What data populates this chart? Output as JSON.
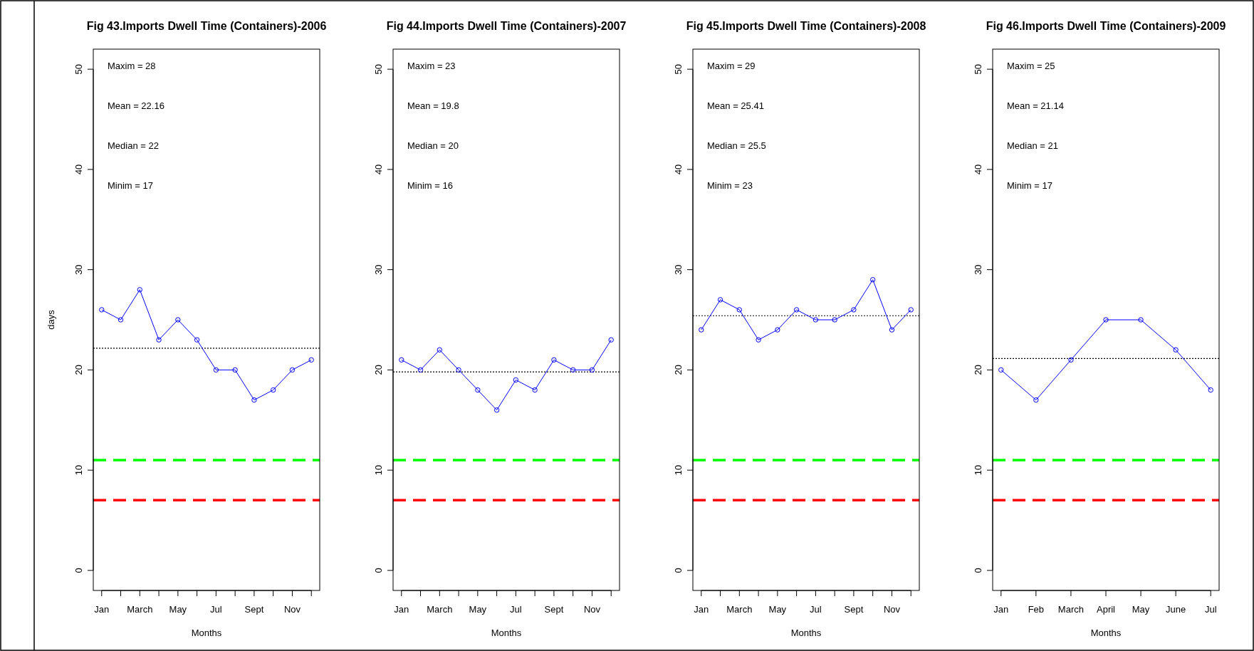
{
  "chart_data": [
    {
      "type": "line",
      "title": "Fig 43.Imports Dwell Time (Containers)-2006",
      "xlabel": "Months",
      "ylabel": "days",
      "categories": [
        "Jan",
        null,
        "March",
        null,
        "May",
        null,
        "Jul",
        null,
        "Sept",
        null,
        "Nov",
        null
      ],
      "series": [
        {
          "color": "#0000ff",
          "values": [
            26,
            25,
            28,
            23,
            25,
            23,
            20,
            20,
            17,
            18,
            20,
            21
          ]
        }
      ],
      "ylim": [
        -2,
        52
      ],
      "yticks": [
        0,
        10,
        20,
        30,
        40,
        50
      ],
      "marker": "circle",
      "line_style": "solid",
      "annotations": [
        "Maxim  = 28",
        "Mean = 22.16",
        "Median = 22",
        "Minim  = 17"
      ],
      "ref_lines": [
        {
          "axis": "y",
          "value": 22.16,
          "color": "#000000",
          "line_style": "dotted"
        },
        {
          "axis": "y",
          "value": 11,
          "color": "#00ff00",
          "line_style": "dashed"
        },
        {
          "axis": "y",
          "value": 7,
          "color": "#ff0000",
          "line_style": "dashed"
        }
      ]
    },
    {
      "type": "line",
      "title": "Fig 44.Imports Dwell Time (Containers)-2007",
      "xlabel": "Months",
      "categories": [
        "Jan",
        null,
        "March",
        null,
        "May",
        null,
        "Jul",
        null,
        "Sept",
        null,
        "Nov",
        null
      ],
      "series": [
        {
          "color": "#0000ff",
          "values": [
            21,
            20,
            22,
            20,
            18,
            16,
            19,
            18,
            21,
            20,
            20,
            23
          ]
        }
      ],
      "ylim": [
        -2,
        52
      ],
      "yticks": [
        0,
        10,
        20,
        30,
        40,
        50
      ],
      "marker": "circle",
      "line_style": "solid",
      "annotations": [
        "Maxim  = 23",
        "Mean = 19.8",
        "Median = 20",
        "Minim  = 16"
      ],
      "ref_lines": [
        {
          "axis": "y",
          "value": 19.8,
          "color": "#000000",
          "line_style": "dotted"
        },
        {
          "axis": "y",
          "value": 11,
          "color": "#00ff00",
          "line_style": "dashed"
        },
        {
          "axis": "y",
          "value": 7,
          "color": "#ff0000",
          "line_style": "dashed"
        }
      ]
    },
    {
      "type": "line",
      "title": "Fig 45.Imports Dwell Time (Containers)-2008",
      "xlabel": "Months",
      "categories": [
        "Jan",
        null,
        "March",
        null,
        "May",
        null,
        "Jul",
        null,
        "Sept",
        null,
        "Nov",
        null
      ],
      "series": [
        {
          "color": "#0000ff",
          "values": [
            24,
            27,
            26,
            23,
            24,
            26,
            25,
            25,
            26,
            29,
            24,
            26
          ]
        }
      ],
      "ylim": [
        -2,
        52
      ],
      "yticks": [
        0,
        10,
        20,
        30,
        40,
        50
      ],
      "marker": "circle",
      "line_style": "solid",
      "annotations": [
        "Maxim  = 29",
        "Mean = 25.41",
        "Median = 25.5",
        "Minim  = 23"
      ],
      "ref_lines": [
        {
          "axis": "y",
          "value": 25.41,
          "color": "#000000",
          "line_style": "dotted"
        },
        {
          "axis": "y",
          "value": 11,
          "color": "#00ff00",
          "line_style": "dashed"
        },
        {
          "axis": "y",
          "value": 7,
          "color": "#ff0000",
          "line_style": "dashed"
        }
      ]
    },
    {
      "type": "line",
      "title": "Fig 46.Imports Dwell Time (Containers)-2009",
      "xlabel": "Months",
      "categories": [
        "Jan",
        "Feb",
        "March",
        "April",
        "May",
        "June",
        "Jul"
      ],
      "series": [
        {
          "color": "#0000ff",
          "values": [
            20,
            17,
            21,
            25,
            25,
            22,
            18
          ]
        }
      ],
      "ylim": [
        -2,
        52
      ],
      "yticks": [
        0,
        10,
        20,
        30,
        40,
        50
      ],
      "marker": "circle",
      "line_style": "solid",
      "annotations": [
        "Maxim  = 25",
        "Mean = 21.14",
        "Median = 21",
        "Minim  = 17"
      ],
      "ref_lines": [
        {
          "axis": "y",
          "value": 21.14,
          "color": "#000000",
          "line_style": "dotted"
        },
        {
          "axis": "y",
          "value": 11,
          "color": "#00ff00",
          "line_style": "dashed"
        },
        {
          "axis": "y",
          "value": 7,
          "color": "#ff0000",
          "line_style": "dashed"
        }
      ]
    }
  ]
}
